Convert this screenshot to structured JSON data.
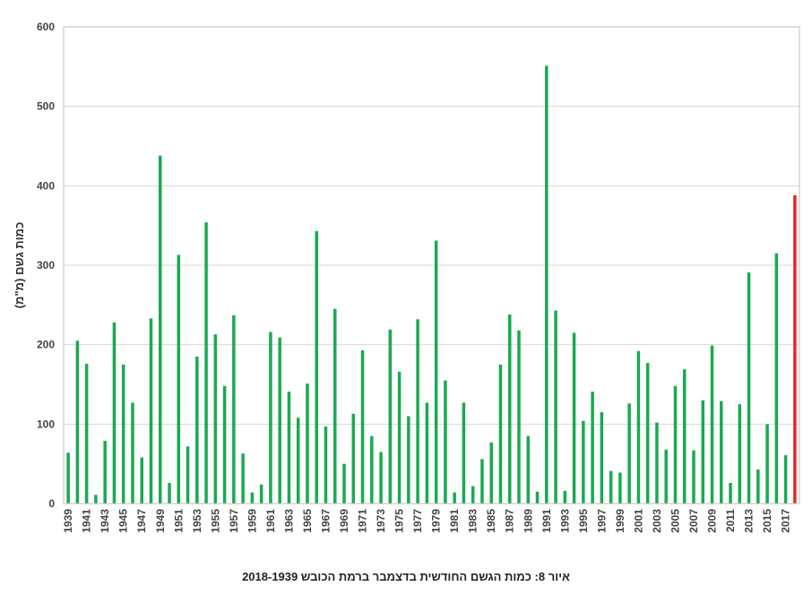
{
  "caption": "איור 8: כמות הגשם החודשית בדצמבר ברמת הכובש 2018-1939",
  "chart_data": {
    "type": "bar",
    "ylabel": "כמות גשם (מ\"מ)",
    "xlabel": "",
    "ylim": [
      0,
      600
    ],
    "yticks": [
      0,
      100,
      200,
      300,
      400,
      500,
      600
    ],
    "grid": true,
    "colors": {
      "default": "#1aaa50",
      "highlight": "#e8272a"
    },
    "highlight_category": "2018",
    "tick_labels": [
      "1939",
      "1941",
      "1943",
      "1945",
      "1947",
      "1949",
      "1951",
      "1953",
      "1955",
      "1957",
      "1959",
      "1961",
      "1963",
      "1965",
      "1967",
      "1969",
      "1971",
      "1973",
      "1975",
      "1977",
      "1979",
      "1981",
      "1983",
      "1985",
      "1987",
      "1989",
      "1991",
      "1993",
      "1995",
      "1997",
      "1999",
      "2001",
      "2003",
      "2005",
      "2007",
      "2009",
      "2011",
      "2013",
      "2015",
      "2017"
    ],
    "categories": [
      "1939",
      "1940",
      "1941",
      "1942",
      "1943",
      "1944",
      "1945",
      "1946",
      "1947",
      "1948",
      "1949",
      "1950",
      "1951",
      "1952",
      "1953",
      "1954",
      "1955",
      "1956",
      "1957",
      "1958",
      "1959",
      "1960",
      "1961",
      "1962",
      "1963",
      "1964",
      "1965",
      "1966",
      "1967",
      "1968",
      "1969",
      "1970",
      "1971",
      "1972",
      "1973",
      "1974",
      "1975",
      "1976",
      "1977",
      "1978",
      "1979",
      "1980",
      "1981",
      "1982",
      "1983",
      "1984",
      "1985",
      "1986",
      "1987",
      "1988",
      "1989",
      "1990",
      "1991",
      "1992",
      "1993",
      "1994",
      "1995",
      "1996",
      "1997",
      "1998",
      "1999",
      "2000",
      "2001",
      "2002",
      "2003",
      "2004",
      "2005",
      "2006",
      "2007",
      "2008",
      "2009",
      "2010",
      "2011",
      "2012",
      "2013",
      "2014",
      "2015",
      "2016",
      "2017",
      "2018"
    ],
    "values": [
      64,
      205,
      176,
      11,
      79,
      228,
      175,
      127,
      58,
      233,
      438,
      26,
      313,
      72,
      185,
      354,
      213,
      148,
      237,
      63,
      14,
      24,
      216,
      209,
      141,
      108,
      151,
      343,
      97,
      245,
      50,
      113,
      193,
      85,
      65,
      219,
      166,
      110,
      232,
      127,
      331,
      155,
      14,
      127,
      22,
      56,
      77,
      175,
      238,
      218,
      85,
      15,
      551,
      243,
      16,
      215,
      104,
      141,
      115,
      41,
      39,
      126,
      192,
      177,
      102,
      68,
      148,
      169,
      67,
      130,
      199,
      129,
      26,
      125,
      291,
      43,
      100,
      315,
      61,
      388
    ]
  }
}
